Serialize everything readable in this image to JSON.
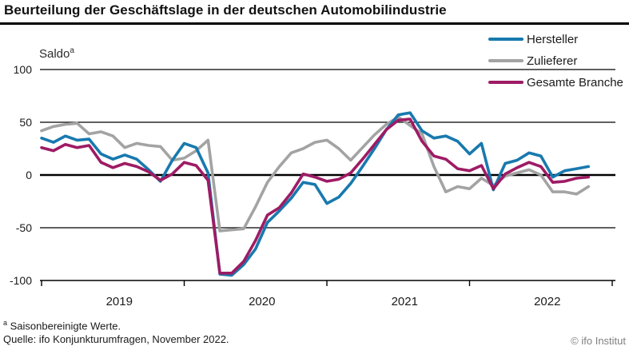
{
  "title": "Beurteilung der Geschäftslage in der deutschen Automobilindustrie",
  "y_axis_label": {
    "text": "Saldo",
    "superscript": "a"
  },
  "footnotes": {
    "note_marker": "a",
    "note_text": "Saisonbereinigte Werte.",
    "source": "Quelle: ifo Konjunkturumfragen, November 2022.",
    "copyright": "© ifo Institut"
  },
  "chart_data": {
    "type": "line",
    "x_unit": "month",
    "x_start": "2019-01",
    "x_end": "2022-11",
    "x_tick_labels": [
      "2019",
      "2020",
      "2021",
      "2022"
    ],
    "y_ticks": [
      100,
      50,
      0,
      -50,
      -100
    ],
    "ylim": [
      -100,
      100
    ],
    "grid": "horizontal",
    "legend_position": "top-right",
    "series": [
      {
        "name": "Hersteller",
        "color": "#1879ae",
        "values": [
          35,
          31,
          37,
          33,
          34,
          20,
          15,
          19,
          15,
          5,
          -6,
          14,
          30,
          26,
          2,
          -94,
          -95,
          -85,
          -70,
          -45,
          -34,
          -22,
          -7,
          -9,
          -27,
          -21,
          -8,
          8,
          25,
          43,
          57,
          59,
          42,
          35,
          37,
          32,
          20,
          30,
          -14,
          11,
          14,
          21,
          18,
          -2,
          4,
          6,
          8
        ]
      },
      {
        "name": "Zulieferer",
        "color": "#a3a3a3",
        "values": [
          42,
          46,
          48,
          49,
          39,
          41,
          37,
          26,
          30,
          28,
          27,
          14,
          16,
          23,
          33,
          -53,
          -52,
          -51,
          -30,
          -7,
          8,
          21,
          25,
          31,
          33,
          25,
          14,
          26,
          38,
          48,
          55,
          47,
          39,
          8,
          -16,
          -11,
          -13,
          -3,
          -10,
          -1,
          2,
          5,
          0,
          -16,
          -16,
          -18,
          -11
        ]
      },
      {
        "name": "Gesamte Branche",
        "color": "#9e1b64",
        "values": [
          26,
          23,
          29,
          26,
          28,
          12,
          7,
          11,
          8,
          3,
          -5,
          1,
          12,
          9,
          -5,
          -93,
          -93,
          -82,
          -62,
          -38,
          -31,
          -17,
          1,
          -2,
          -6,
          -4,
          2,
          15,
          29,
          43,
          52,
          53,
          32,
          18,
          15,
          6,
          4,
          9,
          -13,
          1,
          7,
          12,
          8,
          -7,
          -6,
          -3,
          -2
        ]
      }
    ]
  }
}
